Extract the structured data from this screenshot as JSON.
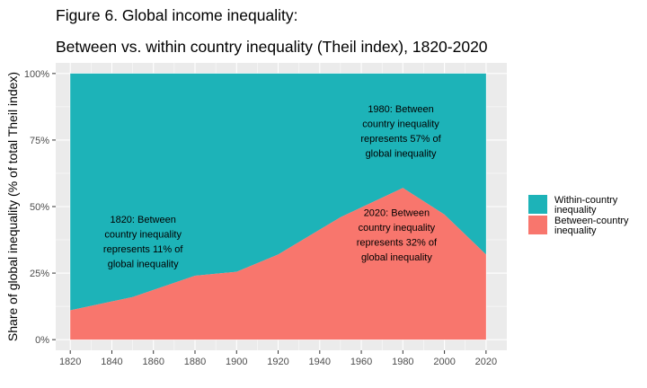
{
  "chart_data": {
    "type": "area",
    "title": "Figure 6. Global income inequality:",
    "subtitle": "Between vs. within country inequality (Theil index), 1820-2020",
    "xlabel": "",
    "ylabel": "Share of global inequality (% of total Theil index)",
    "x": [
      1820,
      1850,
      1880,
      1900,
      1920,
      1950,
      1980,
      2000,
      2020
    ],
    "xlim": [
      1813,
      2030
    ],
    "ylim": [
      -0.04,
      1.04
    ],
    "stacked": true,
    "series": [
      {
        "name": "Between-country inequality",
        "color": "#F8766D",
        "values": [
          0.11,
          0.16,
          0.24,
          0.255,
          0.32,
          0.46,
          0.57,
          0.47,
          0.32
        ]
      },
      {
        "name": "Within-country inequality",
        "color": "#1DB3B8",
        "values": [
          0.89,
          0.84,
          0.76,
          0.745,
          0.68,
          0.54,
          0.43,
          0.53,
          0.68
        ]
      }
    ],
    "x_ticks": [
      1820,
      1840,
      1860,
      1880,
      1900,
      1920,
      1940,
      1960,
      1980,
      2000,
      2020
    ],
    "y_ticks": [
      0,
      0.25,
      0.5,
      0.75,
      1.0
    ],
    "y_tick_labels": [
      "0%",
      "25%",
      "50%",
      "75%",
      "100%"
    ],
    "grid": true,
    "legend_position": "right",
    "annotations": [
      {
        "x": 1855,
        "y": 0.37,
        "lines": [
          "1820: Between",
          "country inequality",
          "represents 11% of",
          "global inequality"
        ]
      },
      {
        "x": 1979,
        "y": 0.785,
        "lines": [
          "1980: Between",
          "country inequality",
          "represents 57% of",
          "global inequality"
        ]
      },
      {
        "x": 1977,
        "y": 0.395,
        "lines": [
          "2020: Between",
          "country inequality",
          "represents 32% of",
          "global inequality"
        ]
      }
    ]
  },
  "legend": {
    "items": [
      {
        "label_lines": [
          "Within-country",
          "inequality"
        ],
        "color": "#1DB3B8"
      },
      {
        "label_lines": [
          "Between-country",
          "inequality"
        ],
        "color": "#F8766D"
      }
    ]
  }
}
